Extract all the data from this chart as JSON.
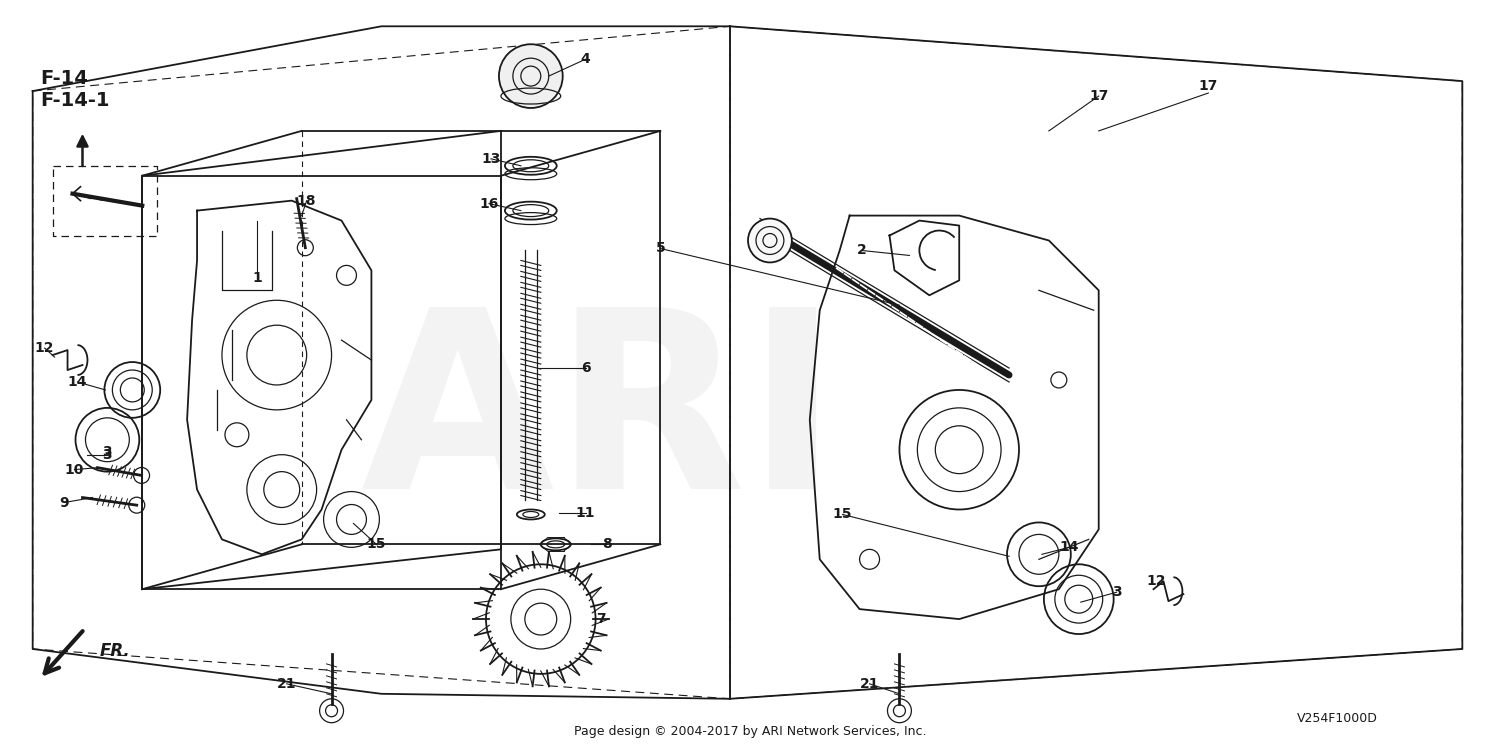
{
  "bg_color": "#ffffff",
  "line_color": "#1a1a1a",
  "watermark_color": "#d0d0d0",
  "title_line1": "F-14",
  "title_line2": "F-14-1",
  "footer_text": "Page design © 2004-2017 by ARI Network Services, Inc.",
  "part_code": "V254F1000D",
  "fr_label": "FR.",
  "watermark_text": "ARI",
  "fig_w": 15.0,
  "fig_h": 7.48,
  "dpi": 100
}
